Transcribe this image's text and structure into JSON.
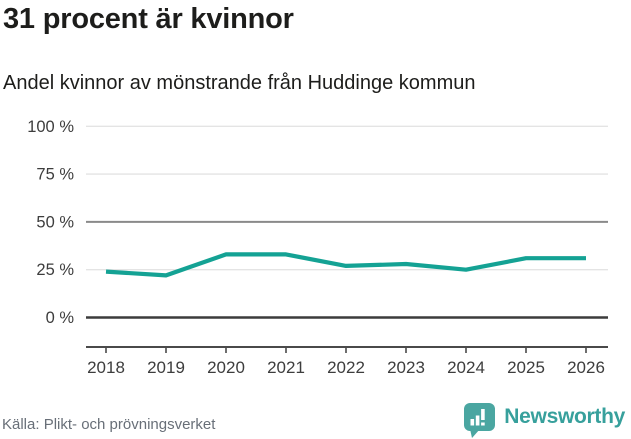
{
  "header": {
    "title": "31 procent är kvinnor",
    "subtitle": "Andel kvinnor av mönstrande från Huddinge kommun"
  },
  "chart_data": {
    "type": "line",
    "x": [
      "2018",
      "2019",
      "2020",
      "2021",
      "2022",
      "2023",
      "2024",
      "2025",
      "2026"
    ],
    "series": [
      {
        "name": "Andel kvinnor av mönstrande",
        "values": [
          24,
          22,
          33,
          33,
          27,
          28,
          25,
          31,
          31
        ]
      }
    ],
    "title": "31 procent är kvinnor",
    "subtitle": "Andel kvinnor av mönstrande från Huddinge kommun",
    "xlabel": "",
    "ylabel": "",
    "unit": "%",
    "ylim": [
      0,
      100
    ],
    "yticks": [
      0,
      25,
      50,
      75,
      100
    ],
    "ytick_suffix": " %",
    "grid": "horizontal",
    "legend_position": "none",
    "line_color": "#14a294",
    "gridline_color_light": "#e4e4e4",
    "gridline_color_mid": "#8a8a8a",
    "gridline_color_zero": "#3c3c3c",
    "axis_color": "#4a4a4a",
    "tick_label_color": "#3d3d3d"
  },
  "footer": {
    "source": "Källa: Plikt- och prövningsverket",
    "brand_name": "Newsworthy",
    "brand_color": "#4aa6a1"
  }
}
